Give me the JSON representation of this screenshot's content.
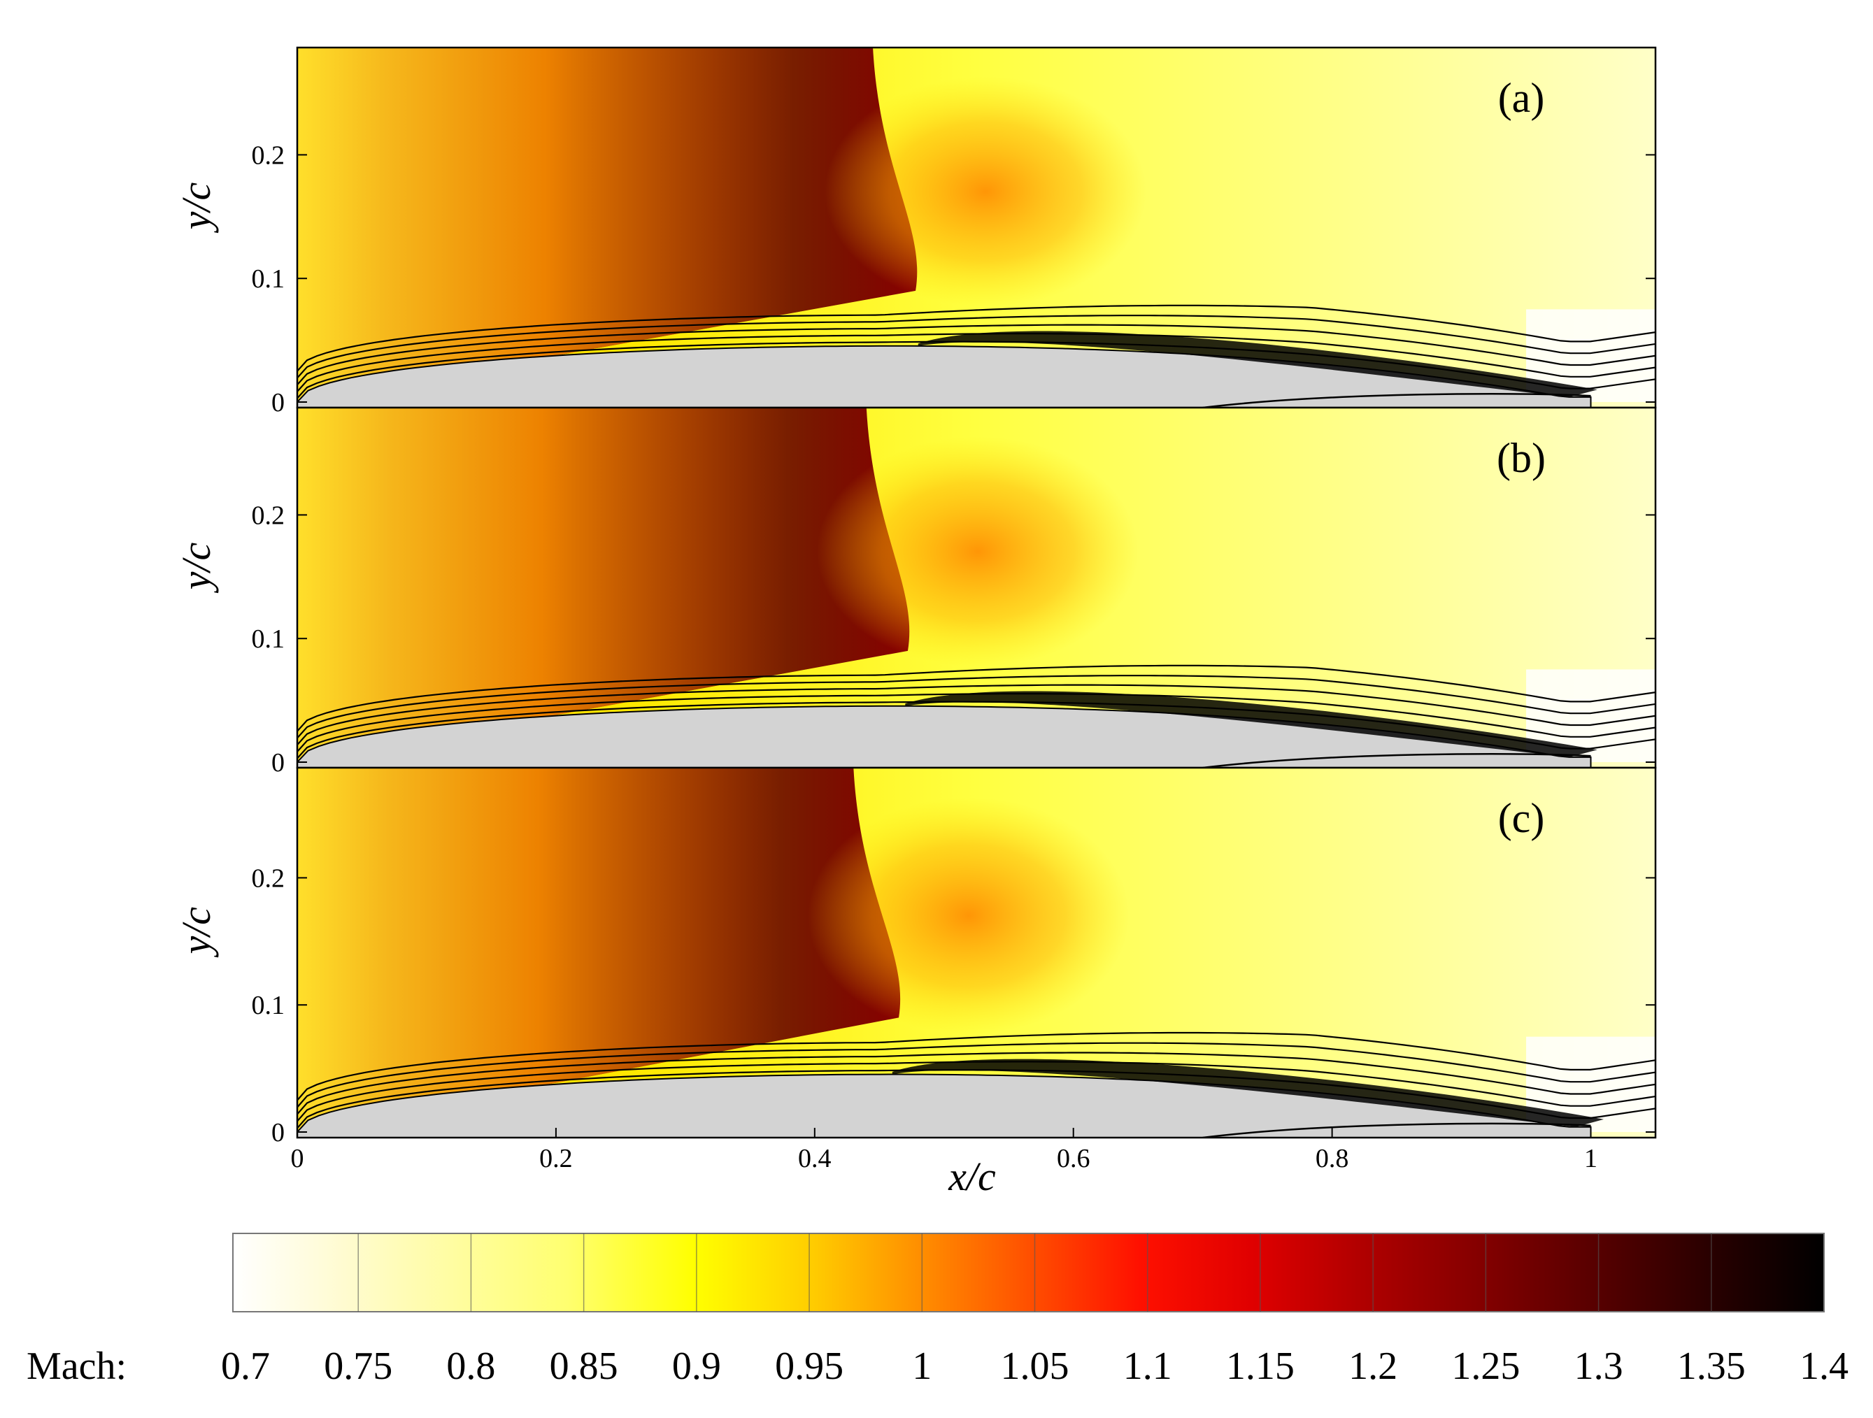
{
  "panels": [
    {
      "tag": "(a)",
      "shock_x": 0.478,
      "shock_top_x": 0.445,
      "sep_start": 0.48,
      "sep_end": 1.005
    },
    {
      "tag": "(b)",
      "shock_x": 0.472,
      "shock_top_x": 0.44,
      "sep_start": 0.47,
      "sep_end": 1.005
    },
    {
      "tag": "(c)",
      "shock_x": 0.465,
      "shock_top_x": 0.43,
      "sep_start": 0.46,
      "sep_end": 1.01
    }
  ],
  "axes": {
    "x_label": "x/c",
    "y_label": "y/c",
    "x_ticks": [
      "0",
      "0.2",
      "0.4",
      "0.6",
      "0.8",
      "1"
    ],
    "x_tick_values": [
      0,
      0.2,
      0.4,
      0.6,
      0.8,
      1.0
    ],
    "y_ticks": [
      "0",
      "0.1",
      "0.2"
    ],
    "y_tick_values": [
      0,
      0.1,
      0.2
    ],
    "xlim": [
      0,
      1.05
    ],
    "ylim": [
      0,
      0.28
    ]
  },
  "colorbar": {
    "label": "Mach:",
    "ticks": [
      "0.7",
      "0.75",
      "0.8",
      "0.85",
      "0.9",
      "0.95",
      "1",
      "1.05",
      "1.1",
      "1.15",
      "1.2",
      "1.25",
      "1.3",
      "1.35",
      "1.4"
    ],
    "tick_values": [
      0.7,
      0.75,
      0.8,
      0.85,
      0.9,
      0.95,
      1.0,
      1.05,
      1.1,
      1.15,
      1.2,
      1.25,
      1.3,
      1.35,
      1.4
    ],
    "range": [
      0.7,
      1.4
    ]
  },
  "colors": {
    "surface": "#d3d3d3",
    "mach_low": "#ffffff",
    "mach_mid": "#ffff00",
    "mach_sonic": "#ff4000",
    "mach_high": "#000000"
  }
}
